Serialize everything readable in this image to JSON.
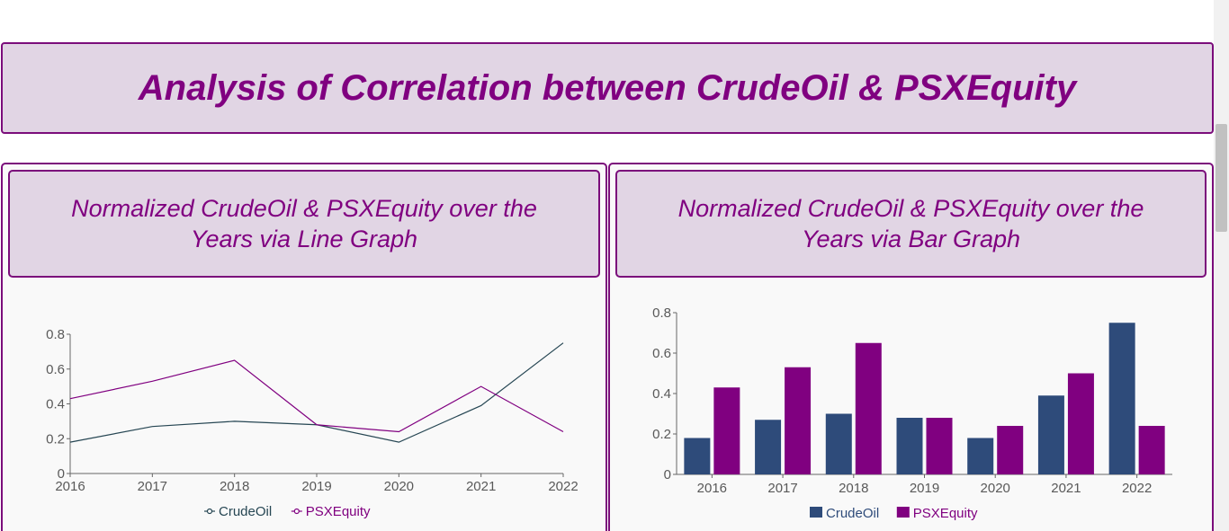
{
  "page": {
    "title": "Analysis of Correlation between CrudeOil & PSXEquity"
  },
  "colors": {
    "accent": "#800080",
    "header_bg": "#e1d5e4",
    "crude": "#264653",
    "crude_bar": "#2e4b7a",
    "psx": "#800080"
  },
  "line_panel": {
    "title": "Normalized CrudeOil & PSXEquity over the Years via Line Graph"
  },
  "bar_panel": {
    "title": "Normalized CrudeOil & PSXEquity over the Years via Bar Graph"
  },
  "chart_data": [
    {
      "type": "line",
      "x": [
        "2016",
        "2017",
        "2018",
        "2019",
        "2020",
        "2021",
        "2022"
      ],
      "series": [
        {
          "name": "CrudeOil",
          "values": [
            0.18,
            0.27,
            0.3,
            0.28,
            0.18,
            0.39,
            0.75
          ]
        },
        {
          "name": "PSXEquity",
          "values": [
            0.43,
            0.53,
            0.65,
            0.28,
            0.24,
            0.5,
            0.24
          ]
        }
      ],
      "yticks": [
        "0",
        "0.2",
        "0.4",
        "0.6",
        "0.8"
      ],
      "ylim": [
        0,
        0.8
      ],
      "legend": "bottom-center",
      "grid": false
    },
    {
      "type": "bar",
      "categories": [
        "2016",
        "2017",
        "2018",
        "2019",
        "2020",
        "2021",
        "2022"
      ],
      "series": [
        {
          "name": "CrudeOil",
          "values": [
            0.18,
            0.27,
            0.3,
            0.28,
            0.18,
            0.39,
            0.75
          ]
        },
        {
          "name": "PSXEquity",
          "values": [
            0.43,
            0.53,
            0.65,
            0.28,
            0.24,
            0.5,
            0.24
          ]
        }
      ],
      "yticks": [
        "0",
        "0.2",
        "0.4",
        "0.6",
        "0.8"
      ],
      "ylim": [
        0,
        0.8
      ],
      "legend": "bottom-center",
      "grid": false
    }
  ]
}
